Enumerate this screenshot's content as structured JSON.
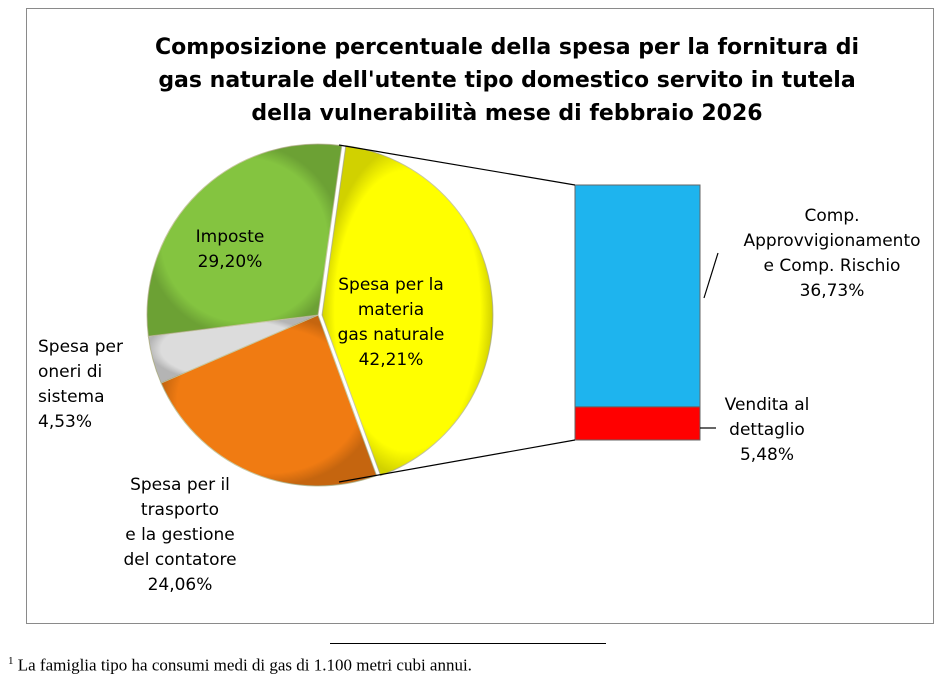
{
  "chart_data": {
    "type": "pie",
    "subtype": "pie-of-bar",
    "title_lines": [
      "Composizione percentuale della spesa per la fornitura di",
      "gas naturale dell'utente tipo domestico servito in tutela",
      "della vulnerabilità mese di febbraio 2026"
    ],
    "pie": [
      {
        "name": "Spesa per la materia gas naturale",
        "label_lines": [
          "Spesa per la",
          "materia",
          "gas naturale",
          "42,21%"
        ],
        "value": 42.21,
        "color": "#FFFF00"
      },
      {
        "name": "Spesa per il trasporto e la gestione del contatore",
        "label_lines": [
          "Spesa per il",
          "trasporto",
          "e la gestione",
          "del contatore",
          "24,06%"
        ],
        "value": 24.06,
        "color": "#F07B12"
      },
      {
        "name": "Spesa per oneri di sistema",
        "label_lines": [
          "Spesa per",
          "oneri di",
          "sistema",
          "4,53%"
        ],
        "value": 4.53,
        "color": "#DCDCDC"
      },
      {
        "name": "Imposte",
        "label_lines": [
          "Imposte",
          "29,20%"
        ],
        "value": 29.2,
        "color": "#84C440"
      }
    ],
    "bar": [
      {
        "name": "Comp. Approvvigionamento e Comp. Rischio",
        "label_lines": [
          "Comp.",
          "Approvvigionamento",
          "e  Comp. Rischio",
          "36,73%"
        ],
        "value": 36.73,
        "color": "#1EB4EE"
      },
      {
        "name": "Vendita al dettaglio",
        "label_lines": [
          "Vendita al",
          "dettaglio",
          "5,48%"
        ],
        "value": 5.48,
        "color": "#FF0000"
      }
    ]
  },
  "footnote": {
    "marker": "1",
    "text": " La famiglia tipo ha consumi medi di gas di 1.100 metri cubi annui."
  }
}
